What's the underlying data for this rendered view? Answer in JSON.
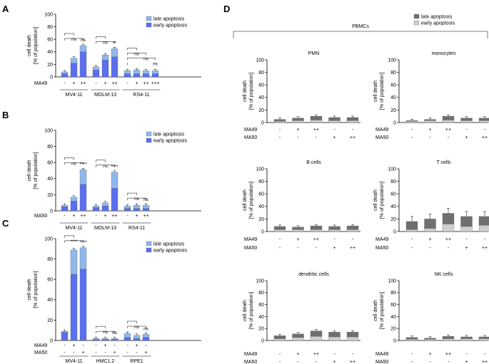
{
  "panel_labels": {
    "A": "A",
    "B": "B",
    "C": "C",
    "D": "D"
  },
  "colors": {
    "late_blue": "#8fb8ec",
    "early_blue": "#5a6ff0",
    "late_grey": "#6f6f6f",
    "early_grey": "#cfcfcf"
  },
  "legend_blue": {
    "late": "late apoptosis",
    "early": "early apoptosis"
  },
  "legend_grey": {
    "late": "late apoptosis",
    "early": "early apoptosis"
  },
  "ylabel_1": "cell death",
  "ylabel_2": "[% of population]",
  "pbmc_title": "PBMCs",
  "chart_data": [
    {
      "id": "A",
      "type": "bar",
      "stacked": true,
      "ylim": [
        0,
        100
      ],
      "yticks": [
        0,
        20,
        40,
        60,
        80,
        100
      ],
      "ylabel": "cell death [% of population]",
      "series": [
        {
          "name": "early apoptosis"
        },
        {
          "name": "late apoptosis"
        }
      ],
      "treatment_rows": [
        {
          "label": "MA49",
          "values": [
            "-",
            "+",
            "++",
            "-",
            "+",
            "++",
            "-",
            "+",
            "++",
            "+++"
          ]
        }
      ],
      "groups": [
        {
          "name": "MV4-11",
          "bars": [
            {
              "early": 5,
              "late": 3
            },
            {
              "early": 22,
              "late": 8
            },
            {
              "early": 40,
              "late": 10
            }
          ],
          "signif": [
            "ns",
            "ns"
          ]
        },
        {
          "name": "MOLM-13",
          "bars": [
            {
              "early": 11,
              "late": 5
            },
            {
              "early": 27,
              "late": 8
            },
            {
              "early": 32,
              "late": 13
            }
          ],
          "signif": [
            "ns",
            "**"
          ]
        },
        {
          "name": "RS4-11",
          "bars": [
            {
              "early": 5,
              "late": 5
            },
            {
              "early": 5,
              "late": 6
            },
            {
              "early": 5,
              "late": 5
            },
            {
              "early": 5,
              "late": 5
            }
          ],
          "signif": [
            "ns",
            "ns",
            "ns",
            "ns"
          ]
        }
      ]
    },
    {
      "id": "B",
      "type": "bar",
      "stacked": true,
      "ylim": [
        0,
        100
      ],
      "yticks": [
        0,
        20,
        40,
        60,
        80,
        100
      ],
      "ylabel": "cell death [% of population]",
      "series": [
        {
          "name": "early apoptosis"
        },
        {
          "name": "late apoptosis"
        }
      ],
      "treatment_rows": [
        {
          "label": "MA50",
          "values": [
            "-",
            "+",
            "++",
            "-",
            "+",
            "++",
            "-",
            "+",
            "++"
          ]
        }
      ],
      "groups": [
        {
          "name": "MV4-11",
          "bars": [
            {
              "early": 5,
              "late": 2
            },
            {
              "early": 12,
              "late": 5
            },
            {
              "early": 33,
              "late": 18
            }
          ],
          "signif": [
            "ns",
            "****"
          ]
        },
        {
          "name": "MOLM-13",
          "bars": [
            {
              "early": 4,
              "late": 2
            },
            {
              "early": 6,
              "late": 4
            },
            {
              "early": 28,
              "late": 20
            }
          ],
          "signif": [
            "ns",
            "****"
          ]
        },
        {
          "name": "RS4-11",
          "bars": [
            {
              "early": 3,
              "late": 3
            },
            {
              "early": 3,
              "late": 4
            },
            {
              "early": 3,
              "late": 4
            }
          ],
          "signif": [
            "ns",
            "ns"
          ]
        }
      ]
    },
    {
      "id": "C",
      "type": "bar",
      "stacked": true,
      "ylim": [
        0,
        100
      ],
      "yticks": [
        0,
        20,
        40,
        60,
        80,
        100
      ],
      "ylabel": "cell death [% of population]",
      "series": [
        {
          "name": "early apoptosis"
        },
        {
          "name": "late apoptosis"
        }
      ],
      "treatment_rows": [
        {
          "label": "MA49",
          "values": [
            "-",
            "+",
            "-",
            "-",
            "+",
            "-",
            "-",
            "+",
            "-"
          ]
        },
        {
          "label": "MA50",
          "values": [
            "-",
            "-",
            "+",
            "-",
            "-",
            "+",
            "-",
            "-",
            "+"
          ]
        }
      ],
      "groups": [
        {
          "name": "MV4-11",
          "bars": [
            {
              "early": 8,
              "late": 1
            },
            {
              "early": 65,
              "late": 24
            },
            {
              "early": 70,
              "late": 21
            }
          ],
          "signif": [
            "****",
            "****"
          ]
        },
        {
          "name": "HMC1.2",
          "bars": [
            {
              "early": 1,
              "late": 1
            },
            {
              "early": 1,
              "late": 1
            },
            {
              "early": 1,
              "late": 1
            }
          ],
          "signif": [
            "ns",
            "ns"
          ]
        },
        {
          "name": "RPE1",
          "bars": [
            {
              "early": 3,
              "late": 4
            },
            {
              "early": 2,
              "late": 3
            },
            {
              "early": 3,
              "late": 3
            }
          ],
          "signif": [
            "ns",
            "ns"
          ]
        }
      ]
    },
    {
      "id": "D",
      "type": "bar",
      "stacked": true,
      "ylim": [
        0,
        100
      ],
      "yticks": [
        0,
        20,
        40,
        60,
        80,
        100
      ],
      "ylabel": "cell death [% of population]",
      "series": [
        {
          "name": "early apoptosis"
        },
        {
          "name": "late apoptosis"
        }
      ],
      "treatment_rows": [
        {
          "label": "MA49",
          "values": [
            "-",
            "+",
            "++",
            "-",
            "-"
          ]
        },
        {
          "label": "MA50",
          "values": [
            "-",
            "-",
            "-",
            "+",
            "++"
          ]
        }
      ],
      "subplots": [
        {
          "title": "PMN",
          "bars": [
            {
              "early": 2,
              "late": 3
            },
            {
              "early": 3,
              "late": 4
            },
            {
              "early": 4,
              "late": 6
            },
            {
              "early": 3,
              "late": 5
            },
            {
              "early": 3,
              "late": 5
            }
          ]
        },
        {
          "title": "monocytes",
          "bars": [
            {
              "early": 2,
              "late": 1
            },
            {
              "early": 3,
              "late": 2
            },
            {
              "early": 4,
              "late": 6
            },
            {
              "early": 3,
              "late": 4
            },
            {
              "early": 3,
              "late": 4
            }
          ]
        },
        {
          "title": "B cells",
          "bars": [
            {
              "early": 3,
              "late": 5
            },
            {
              "early": 3,
              "late": 4
            },
            {
              "early": 3,
              "late": 6
            },
            {
              "early": 3,
              "late": 5
            },
            {
              "early": 3,
              "late": 6
            }
          ]
        },
        {
          "title": "T cells",
          "bars": [
            {
              "early": 3,
              "late": 13
            },
            {
              "early": 5,
              "late": 15
            },
            {
              "early": 12,
              "late": 17
            },
            {
              "early": 8,
              "late": 16
            },
            {
              "early": 10,
              "late": 14
            }
          ]
        },
        {
          "title": "dendritic cells",
          "bars": [
            {
              "early": 3,
              "late": 5
            },
            {
              "early": 5,
              "late": 6
            },
            {
              "early": 7,
              "late": 9
            },
            {
              "early": 6,
              "late": 8
            },
            {
              "early": 6,
              "late": 8
            }
          ]
        },
        {
          "title": "NK cells",
          "bars": [
            {
              "early": 2,
              "late": 3
            },
            {
              "early": 2,
              "late": 2
            },
            {
              "early": 3,
              "late": 4
            },
            {
              "early": 3,
              "late": 3
            },
            {
              "early": 3,
              "late": 3
            }
          ]
        }
      ]
    }
  ]
}
